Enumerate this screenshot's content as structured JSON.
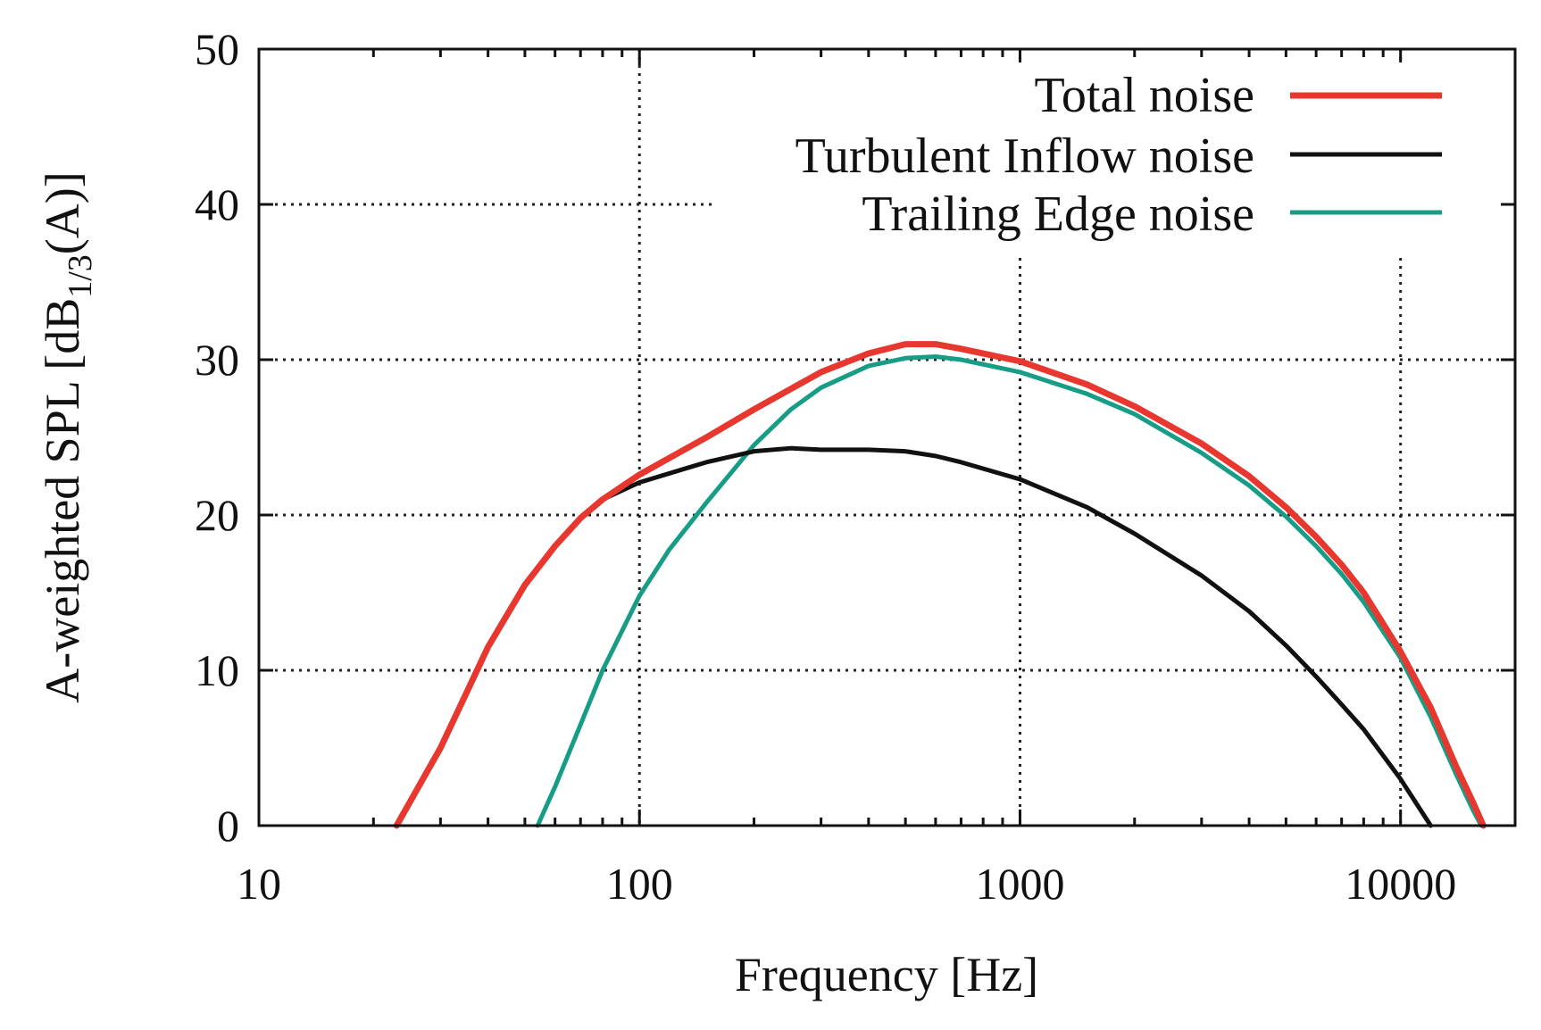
{
  "chart_data": {
    "type": "line",
    "xscale": "log",
    "xlim": [
      10,
      20000
    ],
    "ylim": [
      0,
      50
    ],
    "xticks": [
      10,
      100,
      1000,
      10000
    ],
    "xtick_labels": [
      "10",
      "100",
      "1000",
      "10000"
    ],
    "yticks": [
      0,
      10,
      20,
      30,
      40,
      50
    ],
    "ytick_labels": [
      "0",
      "10",
      "20",
      "30",
      "40",
      "50"
    ],
    "xlabel": "Frequency [Hz]",
    "ylabel_main": "A-weighted SPL [dB",
    "ylabel_sub": "1/3",
    "ylabel_end": "(A)]",
    "grid": true,
    "legend_position": "top-right",
    "series": [
      {
        "name": "Total noise",
        "color": "#e8372f",
        "points": [
          [
            23,
            0
          ],
          [
            30,
            5
          ],
          [
            40,
            11.5
          ],
          [
            50,
            15.5
          ],
          [
            60,
            18
          ],
          [
            70,
            19.8
          ],
          [
            80,
            21
          ],
          [
            100,
            22.6
          ],
          [
            150,
            25
          ],
          [
            200,
            26.8
          ],
          [
            300,
            29.2
          ],
          [
            400,
            30.4
          ],
          [
            500,
            31
          ],
          [
            600,
            31
          ],
          [
            700,
            30.7
          ],
          [
            1000,
            29.9
          ],
          [
            1500,
            28.4
          ],
          [
            2000,
            27
          ],
          [
            3000,
            24.6
          ],
          [
            4000,
            22.5
          ],
          [
            5000,
            20.5
          ],
          [
            6000,
            18.6
          ],
          [
            7000,
            16.8
          ],
          [
            8000,
            15
          ],
          [
            10000,
            11.2
          ],
          [
            12000,
            7.6
          ],
          [
            14000,
            3.8
          ],
          [
            15500,
            1.5
          ],
          [
            16500,
            0
          ]
        ]
      },
      {
        "name": "Turbulent Inflow noise",
        "color": "#111111",
        "points": [
          [
            23,
            0
          ],
          [
            30,
            5
          ],
          [
            40,
            11.5
          ],
          [
            50,
            15.5
          ],
          [
            60,
            18
          ],
          [
            70,
            19.8
          ],
          [
            80,
            21
          ],
          [
            100,
            22.1
          ],
          [
            150,
            23.4
          ],
          [
            200,
            24.1
          ],
          [
            250,
            24.3
          ],
          [
            300,
            24.2
          ],
          [
            400,
            24.2
          ],
          [
            500,
            24.1
          ],
          [
            600,
            23.8
          ],
          [
            700,
            23.4
          ],
          [
            1000,
            22.3
          ],
          [
            1500,
            20.5
          ],
          [
            2000,
            18.8
          ],
          [
            3000,
            16.1
          ],
          [
            4000,
            13.8
          ],
          [
            5000,
            11.6
          ],
          [
            6000,
            9.6
          ],
          [
            7000,
            7.8
          ],
          [
            8000,
            6.2
          ],
          [
            10000,
            3
          ],
          [
            12000,
            0
          ]
        ]
      },
      {
        "name": "Trailing Edge noise",
        "color": "#179c86",
        "points": [
          [
            54,
            0
          ],
          [
            60,
            2.5
          ],
          [
            70,
            6.5
          ],
          [
            80,
            10
          ],
          [
            100,
            14.8
          ],
          [
            120,
            17.8
          ],
          [
            150,
            20.8
          ],
          [
            200,
            24.5
          ],
          [
            250,
            26.8
          ],
          [
            300,
            28.2
          ],
          [
            400,
            29.6
          ],
          [
            500,
            30.1
          ],
          [
            600,
            30.2
          ],
          [
            700,
            30
          ],
          [
            1000,
            29.2
          ],
          [
            1500,
            27.8
          ],
          [
            2000,
            26.5
          ],
          [
            3000,
            24
          ],
          [
            4000,
            21.9
          ],
          [
            5000,
            19.9
          ],
          [
            6000,
            18
          ],
          [
            7000,
            16.2
          ],
          [
            8000,
            14.4
          ],
          [
            10000,
            10.8
          ],
          [
            12000,
            7
          ],
          [
            14000,
            3.3
          ],
          [
            15500,
            1
          ],
          [
            16300,
            0
          ]
        ]
      }
    ]
  }
}
